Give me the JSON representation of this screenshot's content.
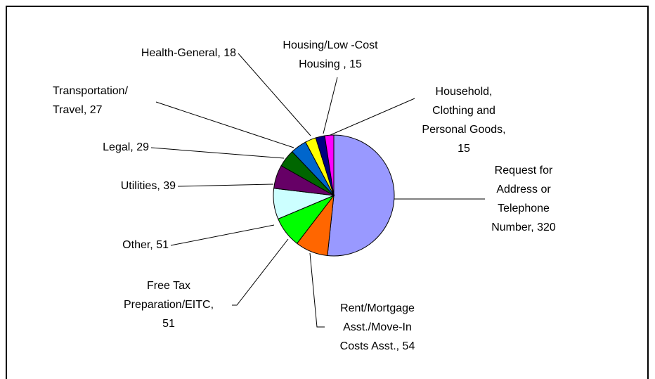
{
  "chart_data": {
    "type": "pie",
    "labels": [
      [
        "Request for",
        "Address or",
        "Telephone",
        "Number, 320"
      ],
      [
        "Rent/Mortgage",
        "Asst./Move-In",
        "Costs Asst., 54"
      ],
      [
        "Free Tax",
        "Preparation/EITC,",
        "51"
      ],
      [
        "Other, 51"
      ],
      [
        "Utilities, 39"
      ],
      [
        "Legal, 29"
      ],
      [
        "Transportation/",
        "Travel, 27"
      ],
      [
        "Health-General, 18"
      ],
      [
        "Housing/Low -Cost",
        "Housing , 15"
      ],
      [
        "Household,",
        "Clothing and",
        "Personal Goods,",
        "15"
      ]
    ],
    "values": [
      320,
      54,
      51,
      51,
      39,
      29,
      27,
      18,
      15,
      15
    ],
    "colors": [
      "#9999ff",
      "#ff6600",
      "#00ff00",
      "#ccffff",
      "#660066",
      "#006600",
      "#0066cc",
      "#ffff00",
      "#000080",
      "#ff00ff"
    ]
  }
}
